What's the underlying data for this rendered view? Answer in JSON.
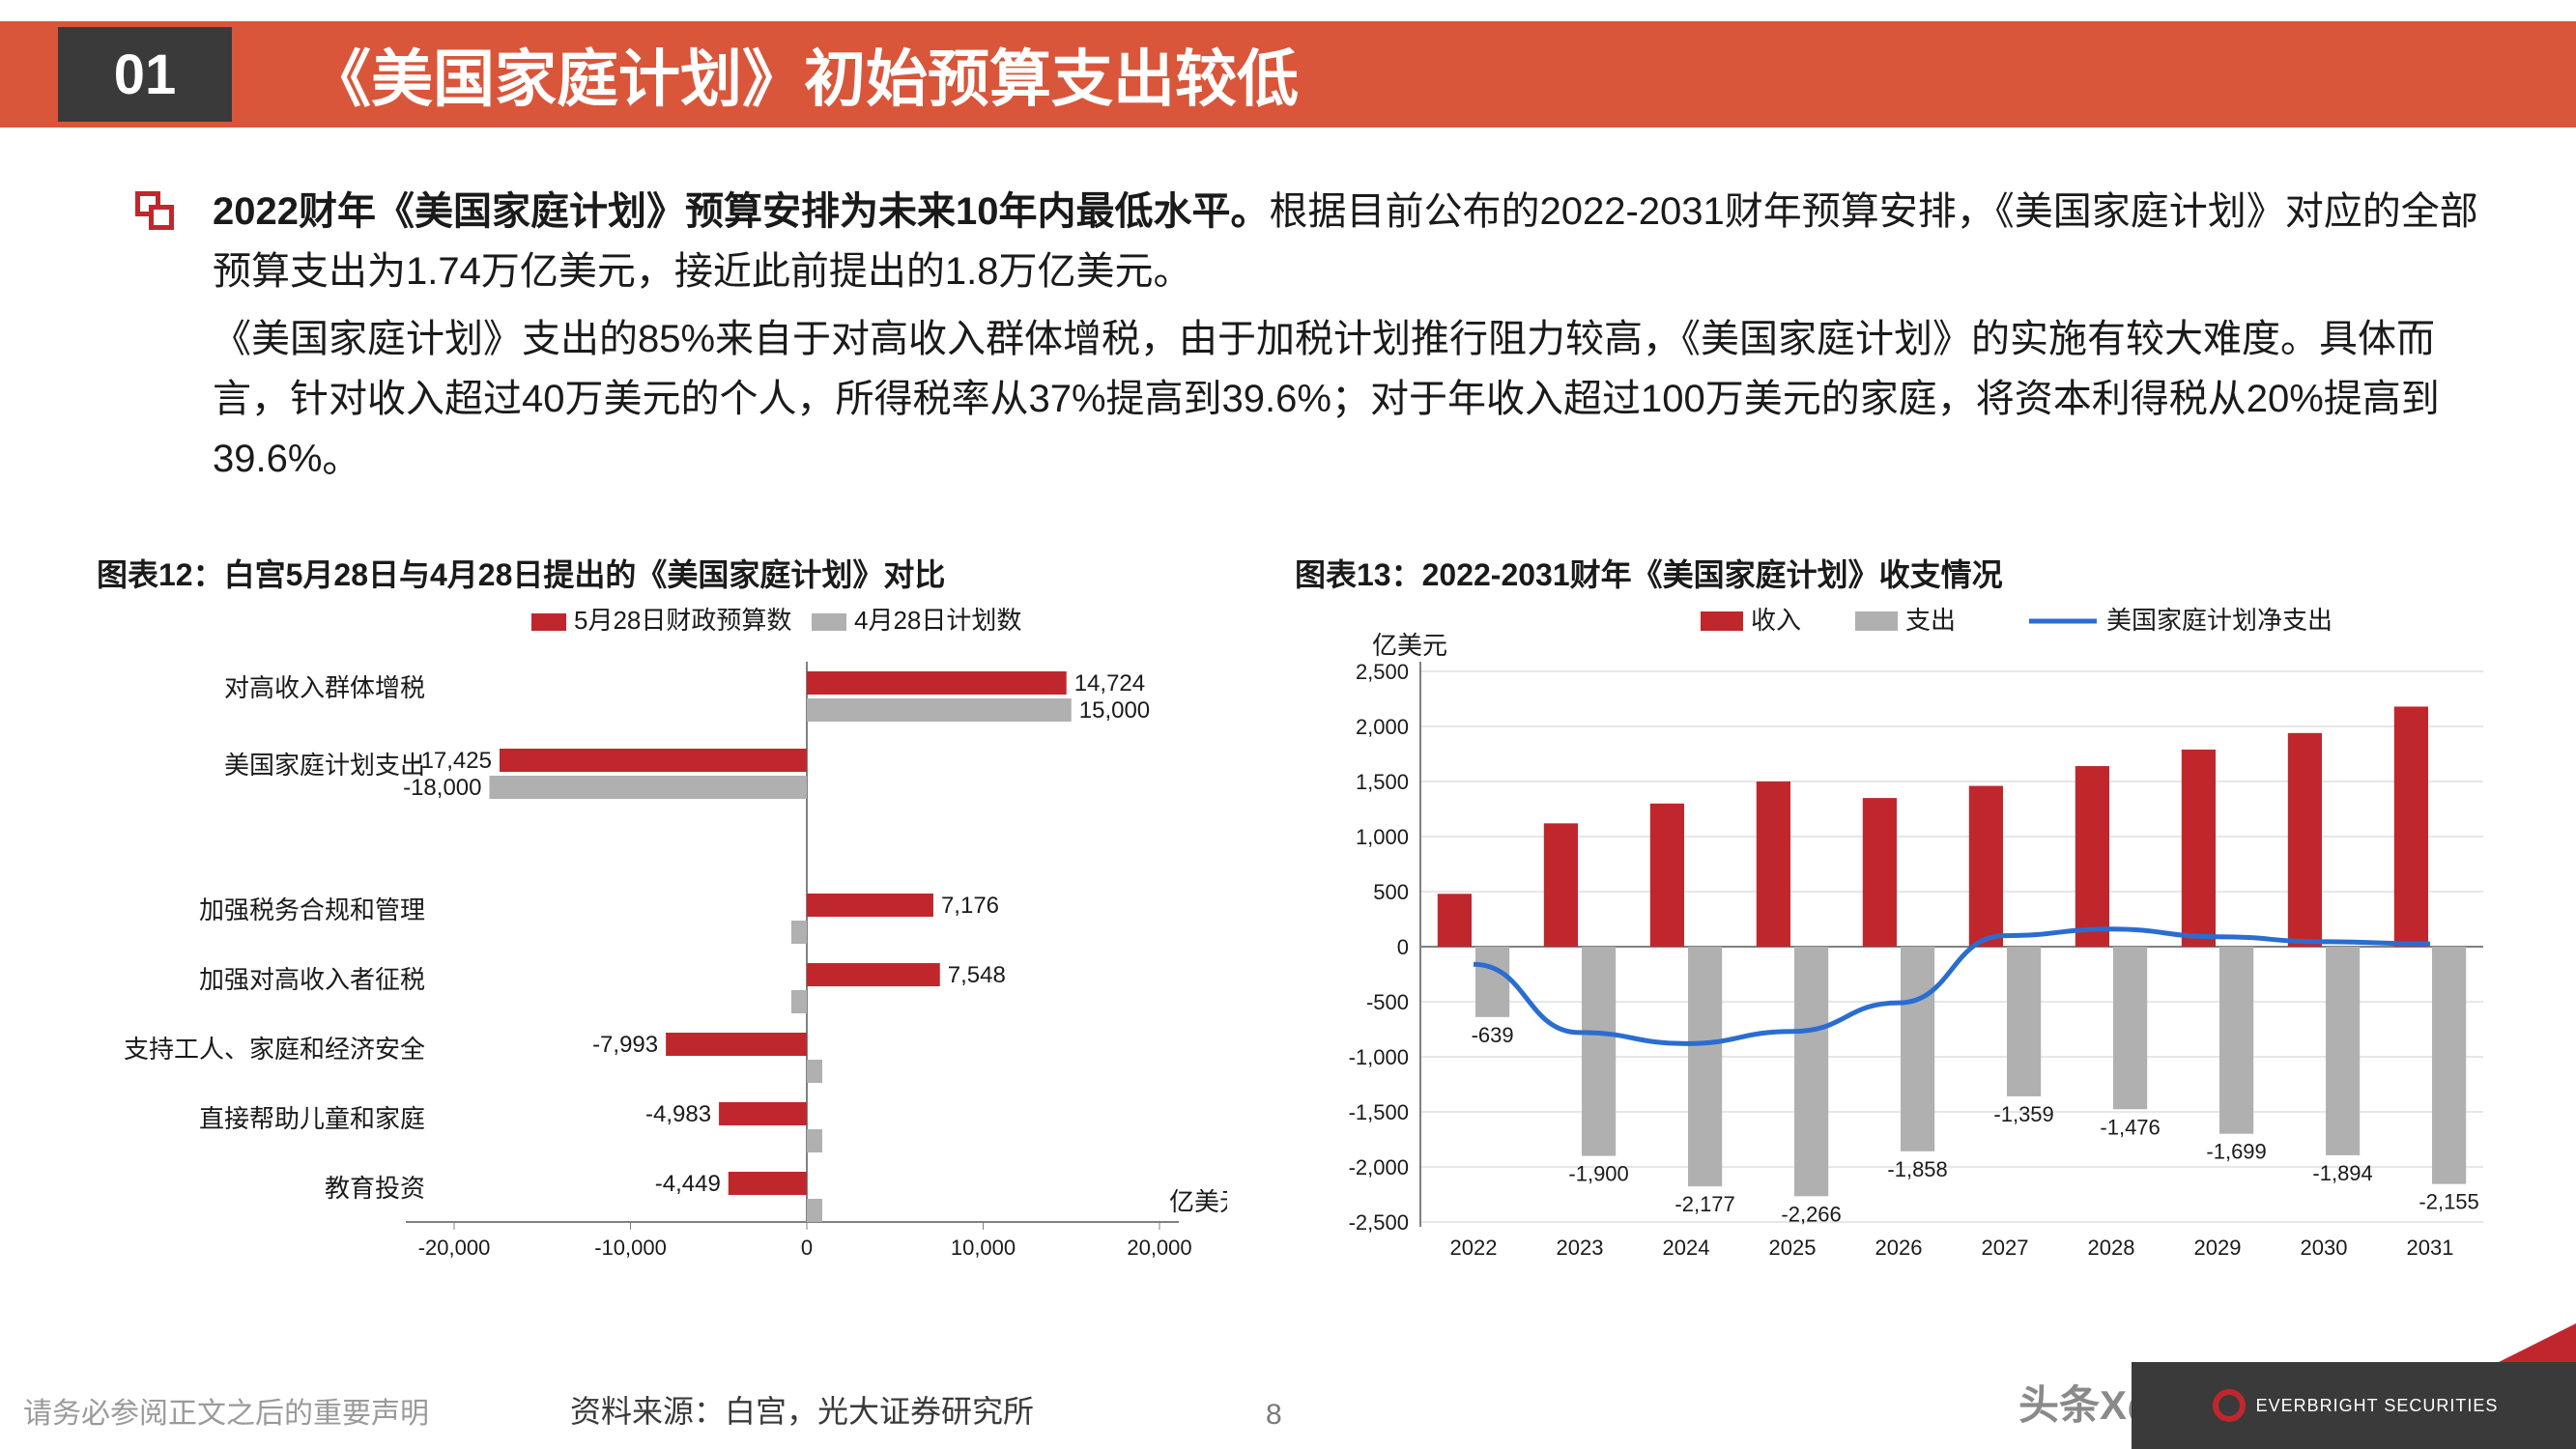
{
  "header": {
    "num": "01",
    "title": "《美国家庭计划》初始预算支出较低"
  },
  "body": {
    "p1_bold": "2022财年《美国家庭计划》预算安排为未来10年内最低水平。",
    "p1_rest": "根据目前公布的2022-2031财年预算安排，《美国家庭计划》对应的全部预算支出为1.74万亿美元，接近此前提出的1.8万亿美元。",
    "p2": "《美国家庭计划》支出的85%来自于对高收入群体增税，由于加税计划推行阻力较高，《美国家庭计划》的实施有较大难度。具体而言，针对收入超过40万美元的个人，所得税率从37%提高到39.6%；对于年收入超过100万美元的家庭，将资本利得税从20%提高到39.6%。"
  },
  "chart12": {
    "title": "图表12：白宫5月28日与4月28日提出的《美国家庭计划》对比",
    "legend": [
      "5月28日财政预算数",
      "4月28日计划数"
    ],
    "unit": "亿美元",
    "xmin": -20000,
    "xmax": 20000,
    "xstep": 10000,
    "colors": {
      "a": "#c0272d",
      "b": "#b0b0b0",
      "axis": "#808080",
      "text": "#1a1a1a"
    },
    "categories": [
      {
        "label": "对高收入群体增税",
        "a": 14724,
        "b": 15000,
        "label_a": "14,724",
        "label_b": "15,000"
      },
      {
        "label": "美国家庭计划支出",
        "a": -17425,
        "b": -18000,
        "label_a": "-17,425",
        "label_b": "-18,000"
      },
      {
        "label": "加强税务合规和管理",
        "a": 7176,
        "b": null,
        "label_a": "7,176"
      },
      {
        "label": "加强对高收入者征税",
        "a": 7548,
        "b": null,
        "label_a": "7,548"
      },
      {
        "label": "支持工人、家庭和经济安全",
        "a": -7993,
        "b": null,
        "label_a": "-7,993"
      },
      {
        "label": "直接帮助儿童和家庭",
        "a": -4983,
        "b": null,
        "label_a": "-4,983"
      },
      {
        "label": "教育投资",
        "a": -4449,
        "b": null,
        "label_a": "-4,449"
      }
    ]
  },
  "chart13": {
    "title": "图表13：2022-2031财年《美国家庭计划》收支情况",
    "legend_bar1": "收入",
    "legend_bar2": "支出",
    "legend_line": "美国家庭计划净支出",
    "unit": "亿美元",
    "ymin": -2500,
    "ymax": 2500,
    "ystep": 500,
    "colors": {
      "rev": "#c0272d",
      "exp": "#b0b0b0",
      "line": "#2a6dd0",
      "axis": "#808080",
      "grid": "#cfcfcf"
    },
    "years": [
      "2022",
      "2023",
      "2024",
      "2025",
      "2026",
      "2027",
      "2028",
      "2029",
      "2030",
      "2031"
    ],
    "revenue": [
      480,
      1120,
      1300,
      1500,
      1350,
      1460,
      1640,
      1790,
      1940,
      2180
    ],
    "expenditure": [
      -639,
      -1900,
      -2177,
      -2266,
      -1858,
      -1359,
      -1476,
      -1699,
      -1894,
      -2155
    ],
    "exp_labels": [
      "-639",
      "-1,900",
      "-2,177",
      "-2,266",
      "-1,858",
      "-1,359",
      "-1,476",
      "-1,699",
      "-1,894",
      "-2,155"
    ],
    "net": [
      -160,
      -780,
      -880,
      -770,
      -510,
      100,
      160,
      90,
      45,
      25
    ]
  },
  "footer": {
    "disclaimer": "请务必参阅正文之后的重要声明",
    "source": "资料来源：白宫，光大证券研究所",
    "page": "8",
    "watermark": "头条X@侠说",
    "logo": "EVERBRIGHT SECURITIES"
  }
}
